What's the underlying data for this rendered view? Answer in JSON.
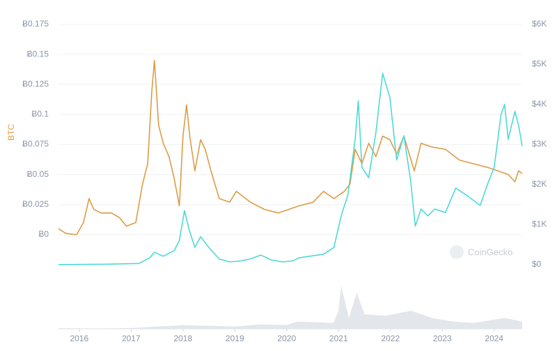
{
  "chart_data": {
    "type": "line",
    "ylabel": "BTC",
    "watermark": "CoinGecko",
    "xlim": [
      2015.6,
      2024.54
    ],
    "xticks": [
      2016,
      2017,
      2018,
      2019,
      2020,
      2021,
      2022,
      2023,
      2024
    ],
    "ylim": [
      -0.025,
      0.175
    ],
    "yticks": [
      {
        "value": 0,
        "label": "Ƀ0"
      },
      {
        "value": 0.025,
        "label": "Ƀ0.025"
      },
      {
        "value": 0.05,
        "label": "Ƀ0.05"
      },
      {
        "value": 0.075,
        "label": "Ƀ0.075"
      },
      {
        "value": 0.1,
        "label": "Ƀ0.1"
      },
      {
        "value": 0.125,
        "label": "Ƀ0.125"
      },
      {
        "value": 0.15,
        "label": "Ƀ0.15"
      },
      {
        "value": 0.175,
        "label": "Ƀ0.175"
      }
    ],
    "y2lim": [
      0,
      6000
    ],
    "y2ticks": [
      {
        "value": 0,
        "label": "$0"
      },
      {
        "value": 1000,
        "label": "$1K"
      },
      {
        "value": 2000,
        "label": "$2K"
      },
      {
        "value": 3000,
        "label": "$3K"
      },
      {
        "value": 4000,
        "label": "$4K"
      },
      {
        "value": 5000,
        "label": "$5K"
      },
      {
        "value": 6000,
        "label": "$6K"
      }
    ],
    "grid": true,
    "series": [
      {
        "color": "#dc9c45",
        "x": [
          2015.6,
          2015.74,
          2015.95,
          2016.08,
          2016.19,
          2016.28,
          2016.42,
          2016.62,
          2016.78,
          2016.91,
          2017.09,
          2017.22,
          2017.32,
          2017.4,
          2017.45,
          2017.53,
          2017.62,
          2017.73,
          2017.83,
          2017.93,
          2018.0,
          2018.07,
          2018.13,
          2018.23,
          2018.34,
          2018.43,
          2018.54,
          2018.7,
          2018.9,
          2019.03,
          2019.3,
          2019.57,
          2019.84,
          2020.04,
          2020.24,
          2020.51,
          2020.71,
          2020.91,
          2021.11,
          2021.22,
          2021.32,
          2021.45,
          2021.58,
          2021.72,
          2021.85,
          2021.99,
          2022.12,
          2022.26,
          2022.46,
          2022.59,
          2022.79,
          2023.06,
          2023.33,
          2023.6,
          2023.87,
          2024.07,
          2024.27,
          2024.4,
          2024.47,
          2024.54
        ],
        "values": [
          0.005,
          0.001,
          0,
          0.01,
          0.03,
          0.021,
          0.018,
          0.018,
          0.014,
          0.007,
          0.01,
          0.042,
          0.059,
          0.12,
          0.145,
          0.091,
          0.076,
          0.065,
          0.047,
          0.024,
          0.082,
          0.108,
          0.082,
          0.053,
          0.079,
          0.071,
          0.053,
          0.03,
          0.027,
          0.036,
          0.027,
          0.021,
          0.018,
          0.021,
          0.024,
          0.027,
          0.036,
          0.03,
          0.036,
          0.042,
          0.071,
          0.059,
          0.076,
          0.065,
          0.082,
          0.079,
          0.067,
          0.082,
          0.053,
          0.076,
          0.073,
          0.071,
          0.062,
          0.059,
          0.056,
          0.053,
          0.05,
          0.044,
          0.053,
          0.051
        ]
      },
      {
        "color": "#4dd9d6",
        "axis": "y2",
        "x": [
          2015.6,
          2016.48,
          2017.15,
          2017.36,
          2017.45,
          2017.62,
          2017.83,
          2017.93,
          2018.03,
          2018.12,
          2018.23,
          2018.34,
          2018.5,
          2018.7,
          2018.9,
          2019.1,
          2019.3,
          2019.5,
          2019.7,
          2019.91,
          2020.11,
          2020.24,
          2020.44,
          2020.71,
          2020.91,
          2021.05,
          2021.18,
          2021.32,
          2021.38,
          2021.45,
          2021.58,
          2021.72,
          2021.85,
          2021.99,
          2022.12,
          2022.26,
          2022.39,
          2022.48,
          2022.59,
          2022.72,
          2022.86,
          2023.06,
          2023.26,
          2023.46,
          2023.73,
          2023.87,
          2024.0,
          2024.13,
          2024.2,
          2024.27,
          2024.4,
          2024.47,
          2024.54
        ],
        "values": [
          1,
          10,
          30,
          170,
          310,
          210,
          350,
          600,
          1350,
          870,
          430,
          700,
          430,
          140,
          70,
          90,
          140,
          240,
          120,
          70,
          90,
          170,
          210,
          260,
          430,
          1220,
          1740,
          3130,
          4090,
          2430,
          2170,
          3300,
          4780,
          4170,
          2610,
          3220,
          2090,
          960,
          1390,
          1220,
          1390,
          1300,
          1910,
          1740,
          1480,
          2000,
          2430,
          3740,
          4000,
          3130,
          3830,
          3480,
          2960
        ]
      }
    ],
    "volume": {
      "color": "#e3e6ea",
      "ylim": [
        0,
        60
      ],
      "x": [
        2015.6,
        2017.0,
        2017.5,
        2018.0,
        2019.0,
        2019.5,
        2020.0,
        2020.2,
        2020.9,
        2021.0,
        2021.05,
        2021.2,
        2021.35,
        2021.5,
        2021.9,
        2022.4,
        2022.8,
        2023.2,
        2023.6,
        2024.2,
        2024.54
      ],
      "values": [
        0,
        1,
        3,
        5,
        3,
        6,
        5,
        10,
        8,
        25,
        60,
        15,
        50,
        20,
        18,
        25,
        15,
        10,
        8,
        15,
        10
      ]
    }
  }
}
